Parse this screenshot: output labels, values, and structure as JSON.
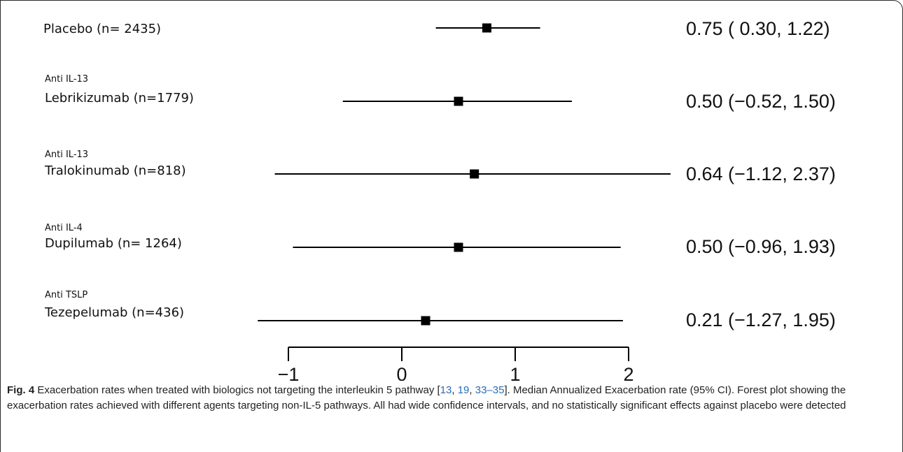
{
  "chart_data": {
    "type": "forest",
    "rows": [
      {
        "class": "",
        "drug": "Placebo (n= 2435)",
        "estimate": 0.75,
        "ci": [
          0.3,
          1.22
        ],
        "label": "0.75 ( 0.30, 1.22)"
      },
      {
        "class": "Anti IL-13",
        "drug": "Lebrikizumab  (n=1779)",
        "estimate": 0.5,
        "ci": [
          -0.52,
          1.5
        ],
        "label": "0.50 (−0.52, 1.50)"
      },
      {
        "class": "Anti IL-13",
        "drug": "Tralokinumab (n=818)",
        "estimate": 0.64,
        "ci": [
          -1.12,
          2.37
        ],
        "label": "0.64 (−1.12, 2.37)"
      },
      {
        "class": "Anti IL-4",
        "drug": "Dupilumab (n= 1264)",
        "estimate": 0.5,
        "ci": [
          -0.96,
          1.93
        ],
        "label": "0.50 (−0.96, 1.93)"
      },
      {
        "class": "Anti TSLP",
        "drug": "Tezepelumab (n=436)",
        "estimate": 0.21,
        "ci": [
          -1.27,
          1.95
        ],
        "label": "0.21 (−1.27, 1.95)"
      }
    ],
    "x_ticks": [
      -1,
      0,
      1,
      2
    ],
    "x_tick_labels": [
      "−1",
      "0",
      "1",
      "2"
    ],
    "xlim": [
      -1,
      2
    ],
    "grid": false
  },
  "caption": {
    "fig_label": "Fig. 4",
    "text_before_refs": " Exacerbation rates when treated with biologics not targeting the interleukin 5 pathway [",
    "refs": [
      "13",
      "19",
      "33–35"
    ],
    "text_after_refs": "]. Median Annualized Exacerbation rate (95% CI). Forest plot showing the exacerbation rates achieved with different agents targeting non-IL-5 pathways. All had wide confidence intervals, and no statistically significant effects against placebo were detected"
  },
  "colors": {
    "marks": "#000000",
    "text": "#111111",
    "link": "#2a6db5"
  }
}
